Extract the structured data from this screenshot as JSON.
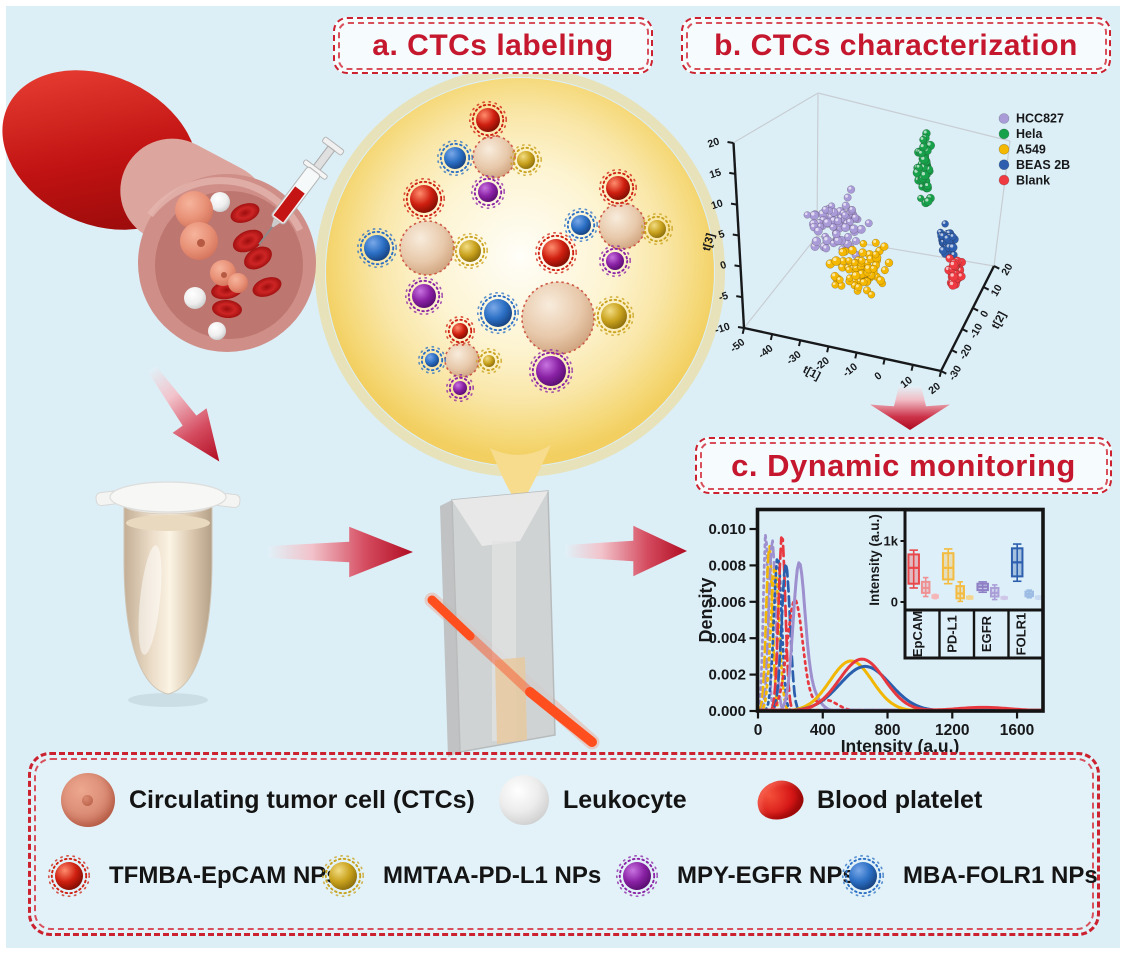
{
  "panels": {
    "a": {
      "label": "a. CTCs labeling"
    },
    "b": {
      "label": "b. CTCs characterization"
    },
    "c": {
      "label": "c. Dynamic monitoring"
    }
  },
  "colors": {
    "background": "#dceff7",
    "accent_red": "#c5182e",
    "np": {
      "red": "#cf1f10",
      "yellow": "#c9a21d",
      "purple": "#8a22a5",
      "blue": "#2b6fc4"
    },
    "cell": "#dcb79c",
    "leukocyte": "#d9d9d9",
    "platelet": "#d61616"
  },
  "legend": {
    "row1": [
      {
        "id": "ctc",
        "label": "Circulating tumor cell (CTCs)"
      },
      {
        "id": "leukocyte",
        "label": "Leukocyte"
      },
      {
        "id": "platelet",
        "label": "Blood platelet"
      }
    ],
    "row2": [
      {
        "id": "np-tfmba",
        "npkey": "red",
        "color": "#cf1f10",
        "label": "TFMBA-EpCAM NPs"
      },
      {
        "id": "np-mmtaa",
        "npkey": "yellow",
        "color": "#c9a21d",
        "label": "MMTAA-PD-L1 NPs"
      },
      {
        "id": "np-mpy",
        "npkey": "purple",
        "color": "#8a22a5",
        "label": "MPY-EGFR NPs"
      },
      {
        "id": "np-mba",
        "npkey": "blue",
        "color": "#2b6fc4",
        "label": "MBA-FOLR1 NPs"
      }
    ]
  },
  "chart_data": [
    {
      "id": "pca3d",
      "type": "scatter",
      "title": "",
      "legend_position": "top-right",
      "axes": {
        "x": {
          "label": "t[1]",
          "ticks": [
            -50,
            -40,
            -30,
            -20,
            -10,
            0,
            10,
            20
          ]
        },
        "y": {
          "label": "t[2]",
          "ticks": [
            20,
            10,
            0,
            -10,
            -20,
            -30
          ]
        },
        "z": {
          "label": "t[3]",
          "ticks": [
            20,
            15,
            10,
            5,
            0,
            -5,
            -10
          ]
        }
      },
      "series": [
        {
          "name": "HCC827",
          "color": "#a99bd8",
          "n": 75,
          "center": {
            "t1": -25,
            "t2": 8,
            "t3": 8
          }
        },
        {
          "name": "Hela",
          "color": "#17a14b",
          "n": 60,
          "center": {
            "t1": 5,
            "t2": 15,
            "t3": 14
          }
        },
        {
          "name": "A549",
          "color": "#f5b800",
          "n": 80,
          "center": {
            "t1": -18,
            "t2": -4,
            "t3": -1
          }
        },
        {
          "name": "BEAS 2B",
          "color": "#2d5fae",
          "n": 45,
          "center": {
            "t1": 12,
            "t2": 8,
            "t3": 2
          }
        },
        {
          "name": "Blank",
          "color": "#ee3a40",
          "n": 40,
          "center": {
            "t1": 14,
            "t2": 4,
            "t3": -4
          }
        }
      ]
    },
    {
      "id": "density",
      "type": "line",
      "xlabel": "Intensity (a.u.)",
      "ylabel": "Density",
      "xlim": [
        0,
        1780
      ],
      "ylim": [
        0,
        0.0105
      ],
      "xticks": [
        0,
        400,
        800,
        1200,
        1600
      ],
      "yticks": [
        "0.000",
        "0.002",
        "0.004",
        "0.006",
        "0.008",
        "0.010"
      ],
      "series": [
        {
          "color": "#9e90cf",
          "style": "dot",
          "components": [
            [
              48,
              15,
              0.0099
            ]
          ]
        },
        {
          "color": "#f2b705",
          "style": "dash",
          "components": [
            [
              70,
              19,
              0.0091
            ]
          ]
        },
        {
          "color": "#9e90cf",
          "style": "dash",
          "components": [
            [
              88,
              21,
              0.0094
            ]
          ]
        },
        {
          "color": "#f2b705",
          "style": "dot",
          "components": [
            [
              105,
              26,
              0.0079
            ]
          ]
        },
        {
          "color": "#2b5fad",
          "style": "dot",
          "components": [
            [
              122,
              24,
              0.0085
            ]
          ]
        },
        {
          "color": "#e8383f",
          "style": "dash",
          "components": [
            [
              148,
              21,
              0.0097
            ]
          ]
        },
        {
          "color": "#2b5fad",
          "style": "dash",
          "components": [
            [
              172,
              26,
              0.0081
            ]
          ]
        },
        {
          "color": "#e8383f",
          "style": "dot",
          "components": [
            [
              228,
              48,
              0.0061
            ],
            [
              420,
              70,
              0.0006
            ]
          ]
        },
        {
          "color": "#9e90cf",
          "style": "solid",
          "components": [
            [
              252,
              36,
              0.0074
            ],
            [
              310,
              55,
              0.0013
            ]
          ]
        },
        {
          "color": "#f2b705",
          "style": "solid",
          "components": [
            [
              575,
              130,
              0.00275
            ]
          ]
        },
        {
          "color": "#2b5fad",
          "style": "solid",
          "components": [
            [
              662,
              155,
              0.00245
            ]
          ]
        },
        {
          "color": "#e8383f",
          "style": "solid",
          "components": [
            [
              642,
              140,
              0.00285
            ],
            [
              1390,
              170,
              0.0002
            ]
          ]
        }
      ]
    },
    {
      "id": "boxplot-inset",
      "type": "box",
      "ylabel": "Intensity (a.u.)",
      "yticks": [
        "0",
        "1k"
      ],
      "ylim": [
        0,
        1100
      ],
      "categories": [
        "EpCAM",
        "PD-L1",
        "EGFR",
        "FOLR1"
      ],
      "groups": [
        {
          "category": "EpCAM",
          "boxes": [
            {
              "color": "#e8474b",
              "lo": 230,
              "q1": 300,
              "med": 560,
              "q3": 780,
              "hi": 850
            },
            {
              "color": "#ef9093",
              "lo": 90,
              "q1": 150,
              "med": 230,
              "q3": 330,
              "hi": 400
            },
            {
              "color": "#f5b6b8",
              "lo": 55,
              "q1": 70,
              "med": 90,
              "q3": 110,
              "hi": 125
            }
          ]
        },
        {
          "category": "PD-L1",
          "boxes": [
            {
              "color": "#f3bc40",
              "lo": 300,
              "q1": 370,
              "med": 560,
              "q3": 800,
              "hi": 870
            },
            {
              "color": "#f3bc40",
              "lo": 10,
              "q1": 60,
              "med": 140,
              "q3": 260,
              "hi": 330
            },
            {
              "color": "#f3d791",
              "lo": 45,
              "q1": 55,
              "med": 70,
              "q3": 90,
              "hi": 100
            }
          ]
        },
        {
          "category": "EGFR",
          "boxes": [
            {
              "color": "#8f80c6",
              "lo": 160,
              "q1": 195,
              "med": 250,
              "q3": 300,
              "hi": 330
            },
            {
              "color": "#ab9fd8",
              "lo": 40,
              "q1": 90,
              "med": 150,
              "q3": 230,
              "hi": 280
            },
            {
              "color": "#cfc7e8",
              "lo": 45,
              "q1": 55,
              "med": 65,
              "q3": 80,
              "hi": 90
            }
          ]
        },
        {
          "category": "FOLR1",
          "boxes": [
            {
              "color": "#2d5fae",
              "lo": 340,
              "q1": 420,
              "med": 650,
              "q3": 880,
              "hi": 950
            },
            {
              "color": "#9dbce4",
              "lo": 70,
              "q1": 95,
              "med": 130,
              "q3": 170,
              "hi": 195
            },
            {
              "color": "#c6d9f1",
              "lo": 45,
              "q1": 55,
              "med": 70,
              "q3": 90,
              "hi": 100
            }
          ]
        }
      ]
    }
  ]
}
